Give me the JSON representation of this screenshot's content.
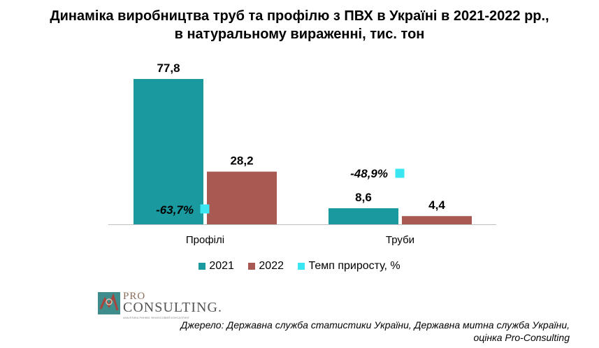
{
  "title": {
    "line1": "Динаміка виробництва труб та профілю з ПВХ в Україні в 2021-2022 рр.,",
    "line2": "в натуральному вираженні, тис. тон"
  },
  "colors": {
    "series_2021": "#1a9a9f",
    "series_2022": "#a85a52",
    "growth_marker": "#39e6f2"
  },
  "chart_data": {
    "type": "bar",
    "categories": [
      "Профілі",
      "Труби"
    ],
    "series": [
      {
        "name": "2021",
        "values": [
          77.8,
          8.6
        ],
        "labels": [
          "77,8",
          "8,6"
        ]
      },
      {
        "name": "2022",
        "values": [
          28.2,
          4.4
        ],
        "labels": [
          "28,2",
          "4,4"
        ]
      }
    ],
    "growth": {
      "name": "Темп приросту, %",
      "values": [
        -63.7,
        -48.9
      ],
      "labels": [
        "-63,7%",
        "-48,9%"
      ]
    },
    "ylim": [
      0,
      80
    ],
    "grid": false,
    "legend_position": "bottom"
  },
  "logo": {
    "pro": "PRO",
    "consulting": "CONSULTING.",
    "tagline": "АНАЛІТИКА РИНКІВ. ФІНАНСОВИЙ КОНСАЛТИНГ"
  },
  "source": {
    "line1": "Джерело: Державна служба статистики України, Державна митна служба України,",
    "line2": "оцінка Pro-Consulting"
  }
}
